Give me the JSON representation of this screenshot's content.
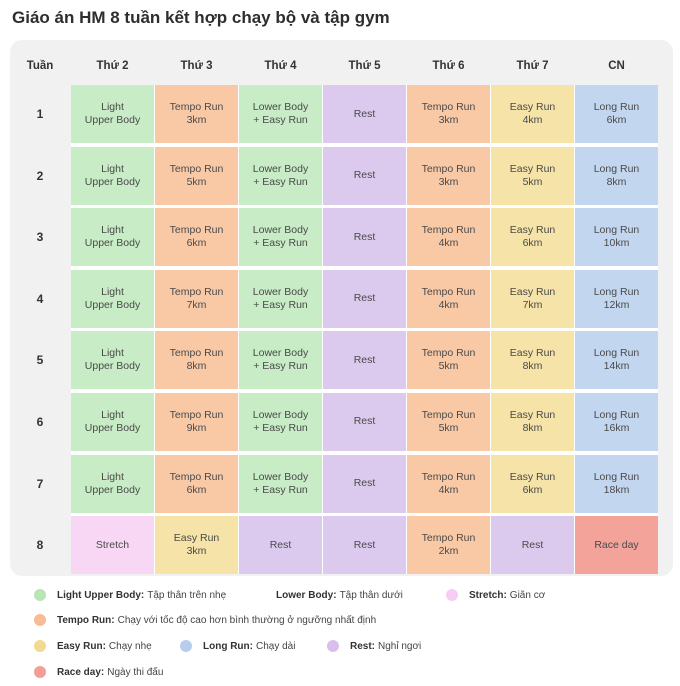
{
  "title": "Giáo án HM 8 tuần kết hợp chạy bộ và tập gym",
  "table": {
    "week_header": "Tuần",
    "days": [
      "Thứ 2",
      "Thứ 3",
      "Thứ 4",
      "Thứ 5",
      "Thứ 6",
      "Thứ 7",
      "CN"
    ],
    "rows": [
      {
        "week": "1",
        "cells": [
          {
            "lines": [
              "Light",
              "Upper Body"
            ],
            "color": "#c8ecc6"
          },
          {
            "lines": [
              "Tempo Run",
              "3km"
            ],
            "color": "#f9c9a6"
          },
          {
            "lines": [
              "Lower Body",
              "+ Easy Run"
            ],
            "color": "#c8ecc6"
          },
          {
            "lines": [
              "Rest"
            ],
            "color": "#dccaee"
          },
          {
            "lines": [
              "Tempo Run",
              "3km"
            ],
            "color": "#f9c9a6"
          },
          {
            "lines": [
              "Easy Run",
              "4km"
            ],
            "color": "#f5e3a8"
          },
          {
            "lines": [
              "Long Run",
              "6km"
            ],
            "color": "#c3d6ef"
          }
        ]
      },
      {
        "week": "2",
        "cells": [
          {
            "lines": [
              "Light",
              "Upper Body"
            ],
            "color": "#c8ecc6"
          },
          {
            "lines": [
              "Tempo Run",
              "5km"
            ],
            "color": "#f9c9a6"
          },
          {
            "lines": [
              "Lower Body",
              "+ Easy Run"
            ],
            "color": "#c8ecc6"
          },
          {
            "lines": [
              "Rest"
            ],
            "color": "#dccaee"
          },
          {
            "lines": [
              "Tempo Run",
              "3km"
            ],
            "color": "#f9c9a6"
          },
          {
            "lines": [
              "Easy Run",
              "5km"
            ],
            "color": "#f5e3a8"
          },
          {
            "lines": [
              "Long Run",
              "8km"
            ],
            "color": "#c3d6ef"
          }
        ]
      },
      {
        "week": "3",
        "cells": [
          {
            "lines": [
              "Light",
              "Upper Body"
            ],
            "color": "#c8ecc6"
          },
          {
            "lines": [
              "Tempo Run",
              "6km"
            ],
            "color": "#f9c9a6"
          },
          {
            "lines": [
              "Lower Body",
              "+ Easy Run"
            ],
            "color": "#c8ecc6"
          },
          {
            "lines": [
              "Rest"
            ],
            "color": "#dccaee"
          },
          {
            "lines": [
              "Tempo Run",
              "4km"
            ],
            "color": "#f9c9a6"
          },
          {
            "lines": [
              "Easy Run",
              "6km"
            ],
            "color": "#f5e3a8"
          },
          {
            "lines": [
              "Long Run",
              "10km"
            ],
            "color": "#c3d6ef"
          }
        ]
      },
      {
        "week": "4",
        "cells": [
          {
            "lines": [
              "Light",
              "Upper Body"
            ],
            "color": "#c8ecc6"
          },
          {
            "lines": [
              "Tempo Run",
              "7km"
            ],
            "color": "#f9c9a6"
          },
          {
            "lines": [
              "Lower Body",
              "+ Easy Run"
            ],
            "color": "#c8ecc6"
          },
          {
            "lines": [
              "Rest"
            ],
            "color": "#dccaee"
          },
          {
            "lines": [
              "Tempo Run",
              "4km"
            ],
            "color": "#f9c9a6"
          },
          {
            "lines": [
              "Easy Run",
              "7km"
            ],
            "color": "#f5e3a8"
          },
          {
            "lines": [
              "Long Run",
              "12km"
            ],
            "color": "#c3d6ef"
          }
        ]
      },
      {
        "week": "5",
        "cells": [
          {
            "lines": [
              "Light",
              "Upper Body"
            ],
            "color": "#c8ecc6"
          },
          {
            "lines": [
              "Tempo Run",
              "8km"
            ],
            "color": "#f9c9a6"
          },
          {
            "lines": [
              "Lower Body",
              "+ Easy Run"
            ],
            "color": "#c8ecc6"
          },
          {
            "lines": [
              "Rest"
            ],
            "color": "#dccaee"
          },
          {
            "lines": [
              "Tempo Run",
              "5km"
            ],
            "color": "#f9c9a6"
          },
          {
            "lines": [
              "Easy Run",
              "8km"
            ],
            "color": "#f5e3a8"
          },
          {
            "lines": [
              "Long Run",
              "14km"
            ],
            "color": "#c3d6ef"
          }
        ]
      },
      {
        "week": "6",
        "cells": [
          {
            "lines": [
              "Light",
              "Upper Body"
            ],
            "color": "#c8ecc6"
          },
          {
            "lines": [
              "Tempo Run",
              "9km"
            ],
            "color": "#f9c9a6"
          },
          {
            "lines": [
              "Lower Body",
              "+ Easy Run"
            ],
            "color": "#c8ecc6"
          },
          {
            "lines": [
              "Rest"
            ],
            "color": "#dccaee"
          },
          {
            "lines": [
              "Tempo Run",
              "5km"
            ],
            "color": "#f9c9a6"
          },
          {
            "lines": [
              "Easy Run",
              "8km"
            ],
            "color": "#f5e3a8"
          },
          {
            "lines": [
              "Long Run",
              "16km"
            ],
            "color": "#c3d6ef"
          }
        ]
      },
      {
        "week": "7",
        "cells": [
          {
            "lines": [
              "Light",
              "Upper Body"
            ],
            "color": "#c8ecc6"
          },
          {
            "lines": [
              "Tempo Run",
              "6km"
            ],
            "color": "#f9c9a6"
          },
          {
            "lines": [
              "Lower Body",
              "+ Easy Run"
            ],
            "color": "#c8ecc6"
          },
          {
            "lines": [
              "Rest"
            ],
            "color": "#dccaee"
          },
          {
            "lines": [
              "Tempo Run",
              "4km"
            ],
            "color": "#f9c9a6"
          },
          {
            "lines": [
              "Easy Run",
              "6km"
            ],
            "color": "#f5e3a8"
          },
          {
            "lines": [
              "Long Run",
              "18km"
            ],
            "color": "#c3d6ef"
          }
        ]
      },
      {
        "week": "8",
        "cells": [
          {
            "lines": [
              "Stretch"
            ],
            "color": "#f8d7f5"
          },
          {
            "lines": [
              "Easy Run",
              "3km"
            ],
            "color": "#f5e3a8"
          },
          {
            "lines": [
              "Rest"
            ],
            "color": "#dccaee"
          },
          {
            "lines": [
              "Rest"
            ],
            "color": "#dccaee"
          },
          {
            "lines": [
              "Tempo Run",
              "2km"
            ],
            "color": "#f9c9a6"
          },
          {
            "lines": [
              "Rest"
            ],
            "color": "#dccaee"
          },
          {
            "lines": [
              "Race day"
            ],
            "color": "#f4a39b"
          }
        ]
      }
    ]
  },
  "legend": [
    {
      "label": "Light Upper Body:",
      "desc": "Tập thân trên nhẹ",
      "color": "#b7e5b3"
    },
    {
      "label": "Lower Body:",
      "desc": "Tập thân dưới"
    },
    {
      "label": "Stretch:",
      "desc": "Giãn cơ",
      "color": "#f7cdf4"
    },
    {
      "label": "Tempo Run:",
      "desc": "Chạy với tốc độ cao hơn bình thường ở ngưỡng nhất định",
      "color": "#f8bb93"
    },
    {
      "label": "Easy Run:",
      "desc": "Chạy nhẹ",
      "color": "#f3da91"
    },
    {
      "label": "Long Run:",
      "desc": "Chạy dài",
      "color": "#b7cdee"
    },
    {
      "label": "Rest:",
      "desc": "Nghỉ ngơi",
      "color": "#d9bfec"
    },
    {
      "label": "Race day:",
      "desc": "Ngày thi đấu",
      "color": "#f29d95"
    }
  ]
}
